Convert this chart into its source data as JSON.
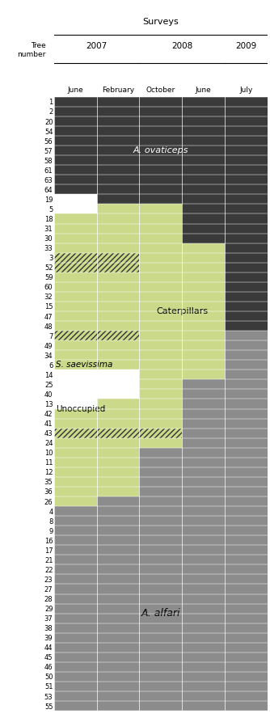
{
  "trees": [
    1,
    2,
    20,
    54,
    56,
    57,
    58,
    61,
    63,
    64,
    19,
    5,
    18,
    31,
    30,
    33,
    3,
    52,
    59,
    60,
    32,
    15,
    47,
    48,
    7,
    49,
    34,
    6,
    14,
    25,
    40,
    13,
    42,
    41,
    43,
    24,
    10,
    11,
    12,
    35,
    36,
    26,
    4,
    8,
    9,
    16,
    17,
    21,
    22,
    23,
    27,
    28,
    29,
    37,
    38,
    39,
    44,
    45,
    46,
    50,
    51,
    53,
    55
  ],
  "month_labels": [
    "June",
    "February",
    "October",
    "June",
    "July"
  ],
  "year_labels": [
    "2007",
    "2008",
    "2009"
  ],
  "color_A_ovaticeps": "#3a3a3a",
  "color_Caterpillars": "#cad98a",
  "color_Unoccupied": "#ffffff",
  "color_A_alfari": "#8c8c8c",
  "color_hatch_bg": "#cad98a",
  "color_hatch_fg": "#333333",
  "tree_data": [
    [
      1,
      1,
      1,
      1,
      1
    ],
    [
      1,
      1,
      1,
      1,
      1
    ],
    [
      1,
      1,
      1,
      1,
      1
    ],
    [
      1,
      1,
      1,
      1,
      1
    ],
    [
      1,
      1,
      1,
      1,
      1
    ],
    [
      1,
      1,
      1,
      1,
      1
    ],
    [
      1,
      1,
      1,
      1,
      1
    ],
    [
      1,
      1,
      1,
      1,
      1
    ],
    [
      1,
      1,
      1,
      1,
      1
    ],
    [
      1,
      1,
      1,
      1,
      1
    ],
    [
      3,
      1,
      1,
      1,
      1
    ],
    [
      3,
      2,
      2,
      1,
      1
    ],
    [
      2,
      2,
      2,
      1,
      1
    ],
    [
      2,
      2,
      2,
      1,
      1
    ],
    [
      2,
      2,
      2,
      1,
      1
    ],
    [
      2,
      2,
      2,
      2,
      1
    ],
    [
      4,
      4,
      2,
      2,
      1
    ],
    [
      4,
      4,
      2,
      2,
      1
    ],
    [
      2,
      2,
      2,
      2,
      1
    ],
    [
      2,
      2,
      2,
      2,
      1
    ],
    [
      2,
      2,
      2,
      2,
      1
    ],
    [
      2,
      2,
      2,
      2,
      1
    ],
    [
      2,
      2,
      2,
      2,
      1
    ],
    [
      2,
      2,
      2,
      2,
      1
    ],
    [
      4,
      4,
      2,
      2,
      5
    ],
    [
      2,
      2,
      2,
      2,
      5
    ],
    [
      2,
      2,
      2,
      2,
      5
    ],
    [
      2,
      2,
      2,
      2,
      5
    ],
    [
      3,
      3,
      2,
      2,
      5
    ],
    [
      3,
      3,
      2,
      5,
      5
    ],
    [
      3,
      3,
      2,
      5,
      5
    ],
    [
      3,
      2,
      2,
      5,
      5
    ],
    [
      2,
      2,
      2,
      5,
      5
    ],
    [
      2,
      2,
      2,
      5,
      5
    ],
    [
      4,
      4,
      4,
      5,
      5
    ],
    [
      2,
      2,
      2,
      5,
      5
    ],
    [
      2,
      2,
      5,
      5,
      5
    ],
    [
      2,
      2,
      5,
      5,
      5
    ],
    [
      2,
      2,
      5,
      5,
      5
    ],
    [
      2,
      2,
      5,
      5,
      5
    ],
    [
      2,
      2,
      5,
      5,
      5
    ],
    [
      2,
      5,
      5,
      5,
      5
    ],
    [
      5,
      5,
      5,
      5,
      5
    ],
    [
      5,
      5,
      5,
      5,
      5
    ],
    [
      5,
      5,
      5,
      5,
      5
    ],
    [
      5,
      5,
      5,
      5,
      5
    ],
    [
      5,
      5,
      5,
      5,
      5
    ],
    [
      5,
      5,
      5,
      5,
      5
    ],
    [
      5,
      5,
      5,
      5,
      5
    ],
    [
      5,
      5,
      5,
      5,
      5
    ],
    [
      5,
      5,
      5,
      5,
      5
    ],
    [
      5,
      5,
      5,
      5,
      5
    ],
    [
      5,
      5,
      5,
      5,
      5
    ],
    [
      5,
      5,
      5,
      5,
      5
    ],
    [
      5,
      5,
      5,
      5,
      5
    ],
    [
      5,
      5,
      5,
      5,
      5
    ],
    [
      5,
      5,
      5,
      5,
      5
    ],
    [
      5,
      5,
      5,
      5,
      5
    ],
    [
      5,
      5,
      5,
      5,
      5
    ],
    [
      5,
      5,
      5,
      5,
      5
    ],
    [
      5,
      5,
      5,
      5,
      5
    ],
    [
      5,
      5,
      5,
      5,
      5
    ],
    [
      5,
      5,
      5,
      5,
      5
    ]
  ],
  "label_A_ovaticeps": "A. ovaticeps",
  "label_Caterpillars": "Caterpillars",
  "label_S_saevissima": "S. saevissima",
  "label_Unoccupied": "Unoccupied",
  "label_A_alfari": "A. alfari",
  "surveys_label": "Surveys",
  "tree_label": "Tree",
  "number_label": "number",
  "bg_color": "#ffffff"
}
